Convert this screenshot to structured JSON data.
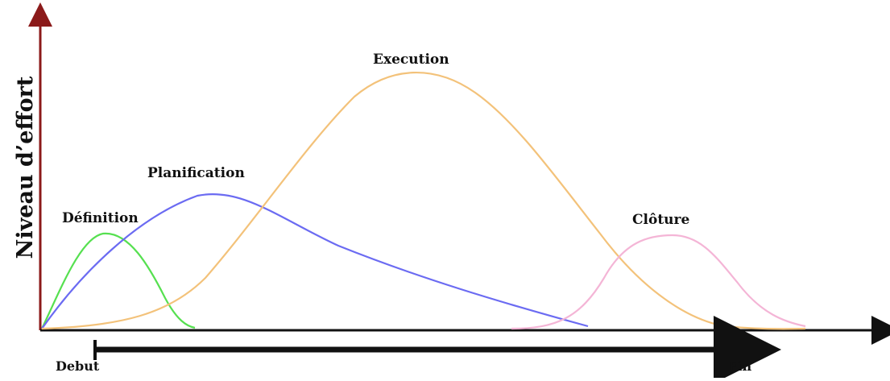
{
  "diagram": {
    "ylabel": "Niveau d’effort",
    "start_label": "Debut",
    "end_label": "Fin",
    "axis_color": "#8b1a1a",
    "baseline_color": "#111111",
    "phases": [
      {
        "key": "definition",
        "label": "Définition",
        "color": "#56e050"
      },
      {
        "key": "planification",
        "label": "Planification",
        "color": "#6b6bf2"
      },
      {
        "key": "execution",
        "label": "Execution",
        "color": "#f3c27a"
      },
      {
        "key": "cloture",
        "label": "Clôture",
        "color": "#f4b5d6"
      }
    ]
  }
}
